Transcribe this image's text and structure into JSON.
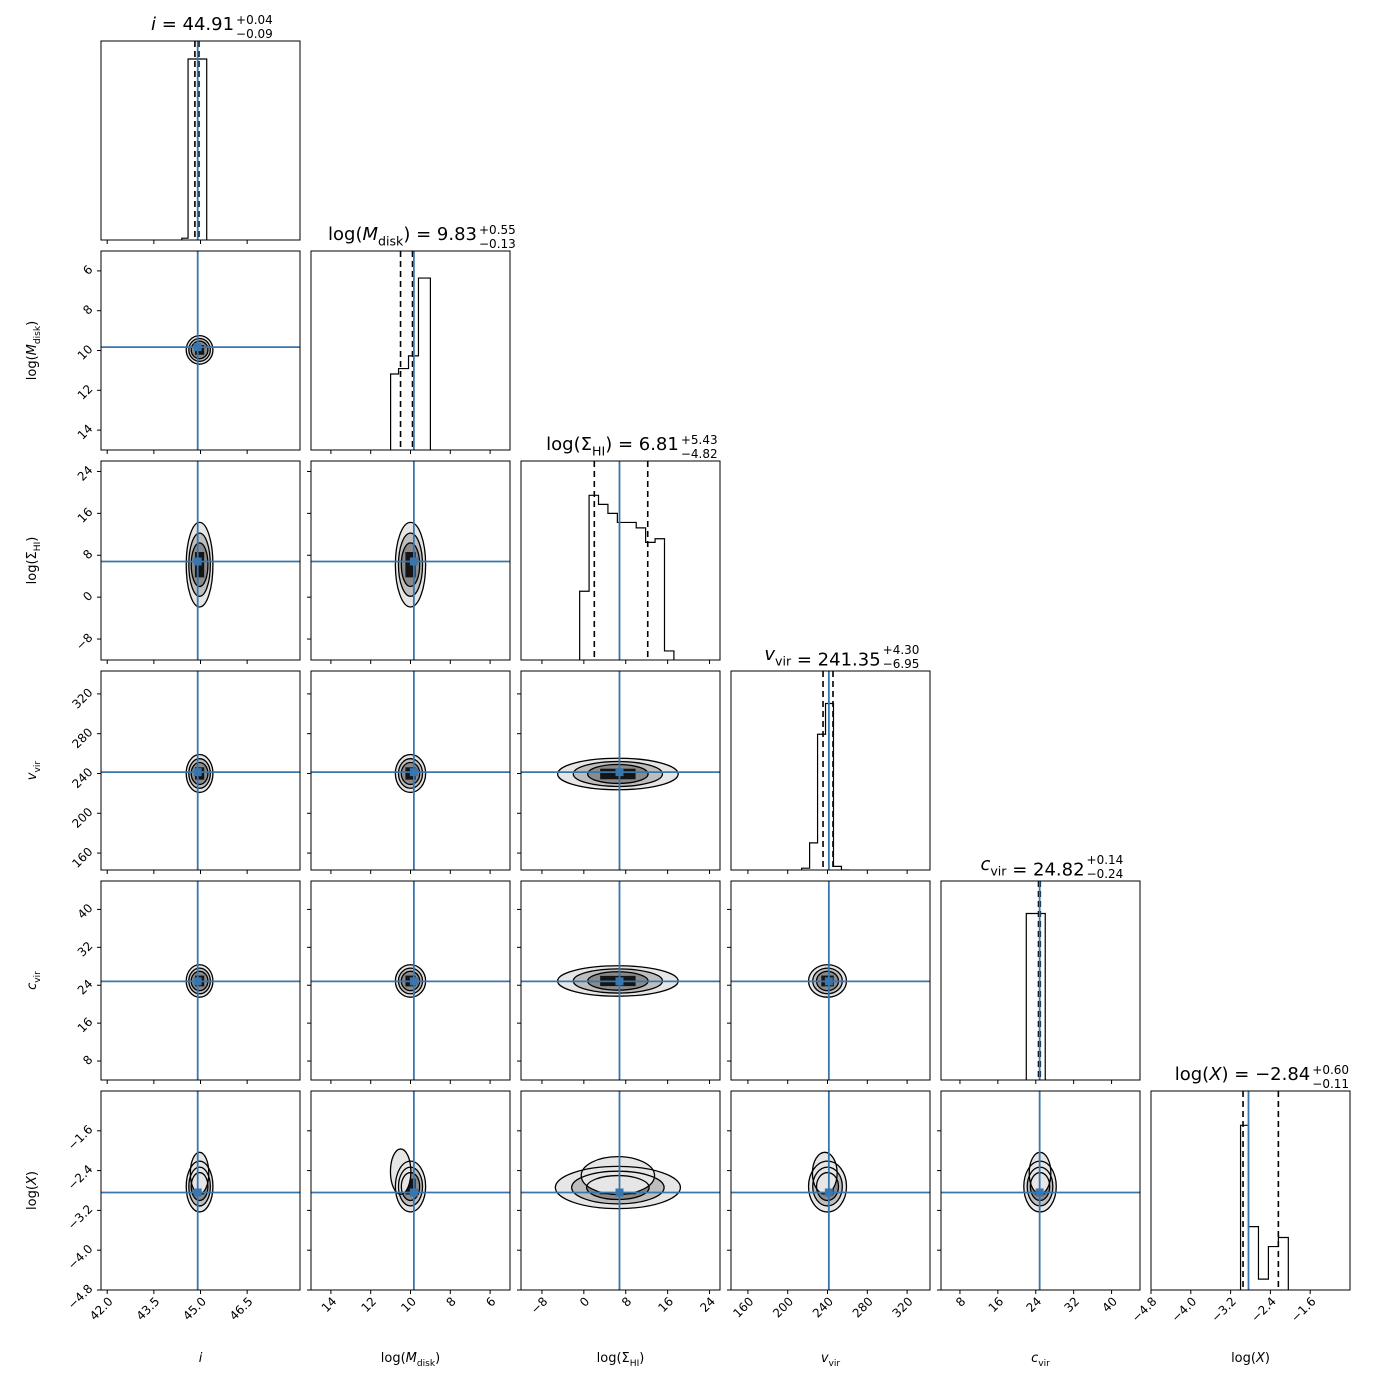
{
  "chart_data": {
    "type": "corner",
    "colors": {
      "truth": "#3a76ae",
      "contour": "#000000",
      "fill": "#7a7a7a"
    },
    "params": [
      {
        "id": "i",
        "label": "i",
        "title": {
          "name": "i",
          "value": "44.91",
          "plus": "+0.04",
          "minus": "−0.09"
        },
        "range": [
          41.8,
          48.2
        ],
        "ticks": [
          "42.0",
          "43.5",
          "45.0",
          "46.5"
        ],
        "truth": 44.91,
        "quantiles": [
          44.82,
          44.95
        ],
        "hist": {
          "edges": [
            44.4,
            44.6,
            44.8,
            45.0,
            45.2
          ],
          "values": [
            0.01,
            1.0,
            1.0,
            1.0
          ]
        }
      },
      {
        "id": "log_mdisk",
        "label": "log(M_disk)",
        "title": {
          "name": "log(M_disk)",
          "value": "9.83",
          "plus": "+0.55",
          "minus": "−0.13"
        },
        "range": [
          15.0,
          5.0
        ],
        "ticks": [
          "14",
          "12",
          "10",
          "8",
          "6"
        ],
        "truth": 9.83,
        "quantiles": [
          10.5,
          9.9
        ],
        "hist": {
          "edges": [
            11.0,
            10.6,
            10.1,
            9.6,
            9.3,
            9.0
          ],
          "values": [
            0.42,
            0.45,
            0.52,
            0.95,
            0.95
          ]
        }
      },
      {
        "id": "log_sigma_hi",
        "label": "log(Σ_HI)",
        "title": {
          "name": "log(Σ_HI)",
          "value": "6.81",
          "plus": "+5.43",
          "minus": "−4.82"
        },
        "range": [
          -12.0,
          26.0
        ],
        "ticks": [
          "−8",
          "0",
          "8",
          "16",
          "24"
        ],
        "truth": 6.81,
        "quantiles": [
          2.0,
          12.2
        ],
        "hist": {
          "edges": [
            -0.8,
            1.0,
            2.8,
            4.6,
            6.4,
            8.2,
            10.0,
            11.8,
            13.6,
            15.4,
            17.2
          ],
          "values": [
            0.38,
            0.91,
            0.86,
            0.81,
            0.76,
            0.76,
            0.73,
            0.65,
            0.67,
            0.05
          ]
        }
      },
      {
        "id": "v_vir",
        "label": "v_vir",
        "title": {
          "name": "v_vir",
          "value": "241.35",
          "plus": "+4.30",
          "minus": "−6.95"
        },
        "range": [
          143.0,
          343.0
        ],
        "ticks": [
          "160",
          "200",
          "240",
          "280",
          "320"
        ],
        "truth": 241.35,
        "quantiles": [
          235.5,
          245.5
        ],
        "hist": {
          "edges": [
            214.0,
            222.0,
            230.0,
            238.0,
            246.0,
            254.0,
            262.0
          ],
          "values": [
            0.01,
            0.15,
            0.75,
            0.92,
            0.02,
            0.0
          ]
        }
      },
      {
        "id": "c_vir",
        "label": "c_vir",
        "title": {
          "name": "c_vir",
          "value": "24.82",
          "plus": "+0.14",
          "minus": "−0.24"
        },
        "range": [
          4.0,
          46.0
        ],
        "ticks": [
          "8",
          "16",
          "24",
          "32",
          "40"
        ],
        "truth": 24.82,
        "quantiles": [
          24.58,
          24.96
        ],
        "hist": {
          "edges": [
            22.0,
            24.0,
            26.0
          ],
          "values": [
            0.92,
            0.92
          ]
        }
      },
      {
        "id": "log_x",
        "label": "log(X)",
        "title": {
          "name": "log(X)",
          "value": "−2.84",
          "plus": "+0.60",
          "minus": "−0.11"
        },
        "range": [
          -4.8,
          -0.8
        ],
        "ticks": [
          "−4.8",
          "−4.0",
          "−3.2",
          "−2.4",
          "−1.6"
        ],
        "truth": -2.84,
        "quantiles": [
          -2.95,
          -2.24
        ],
        "hist": {
          "edges": [
            -3.0,
            -2.84,
            -2.64,
            -2.44,
            -2.24,
            -2.04
          ],
          "values": [
            0.91,
            0.35,
            0.06,
            0.24,
            0.29
          ]
        }
      }
    ],
    "pairs": [
      {
        "row": 1,
        "col": 0,
        "center": [
          44.97,
          9.97
        ],
        "sx": 0.14,
        "sy": 0.24,
        "rot": 0
      },
      {
        "row": 2,
        "col": 0,
        "center": [
          44.97,
          6.2
        ],
        "sx": 0.14,
        "sy": 3.4,
        "rot": 0
      },
      {
        "row": 2,
        "col": 1,
        "center": [
          10.0,
          6.2
        ],
        "sx": 0.26,
        "sy": 3.4,
        "rot": 0
      },
      {
        "row": 3,
        "col": 0,
        "center": [
          44.97,
          240.0
        ],
        "sx": 0.14,
        "sy": 7.0,
        "rot": 0
      },
      {
        "row": 3,
        "col": 1,
        "center": [
          10.0,
          240.0
        ],
        "sx": 0.26,
        "sy": 7.0,
        "rot": 0
      },
      {
        "row": 3,
        "col": 2,
        "center": [
          6.5,
          239.5
        ],
        "sx": 5.0,
        "sy": 5.5,
        "rot": 0
      },
      {
        "row": 4,
        "col": 0,
        "center": [
          44.97,
          24.9
        ],
        "sx": 0.14,
        "sy": 1.2,
        "rot": 0
      },
      {
        "row": 4,
        "col": 1,
        "center": [
          10.0,
          24.9
        ],
        "sx": 0.26,
        "sy": 1.2,
        "rot": 0
      },
      {
        "row": 4,
        "col": 2,
        "center": [
          6.5,
          24.9
        ],
        "sx": 5.0,
        "sy": 1.1,
        "rot": 0
      },
      {
        "row": 4,
        "col": 3,
        "center": [
          240.0,
          24.9
        ],
        "sx": 7.0,
        "sy": 1.2,
        "rot": 0
      },
      {
        "row": 5,
        "col": 0,
        "center": [
          44.97,
          -2.72
        ],
        "sx": 0.14,
        "sy": 0.2,
        "rot": 0,
        "tail": [
          0.0,
          0.45
        ]
      },
      {
        "row": 5,
        "col": 1,
        "center": [
          10.0,
          -2.72
        ],
        "sx": 0.26,
        "sy": 0.2,
        "rot": 0,
        "tail": [
          0.9,
          0.5
        ]
      },
      {
        "row": 5,
        "col": 2,
        "center": [
          6.5,
          -2.74
        ],
        "sx": 5.2,
        "sy": 0.16,
        "rot": 0,
        "tail": [
          0.0,
          0.4
        ]
      },
      {
        "row": 5,
        "col": 3,
        "center": [
          240.0,
          -2.72
        ],
        "sx": 7.0,
        "sy": 0.2,
        "rot": 0,
        "tail": [
          -5.0,
          0.45
        ]
      },
      {
        "row": 5,
        "col": 4,
        "center": [
          24.9,
          -2.72
        ],
        "sx": 1.2,
        "sy": 0.2,
        "rot": 0,
        "tail": [
          0.0,
          0.45
        ]
      }
    ]
  }
}
